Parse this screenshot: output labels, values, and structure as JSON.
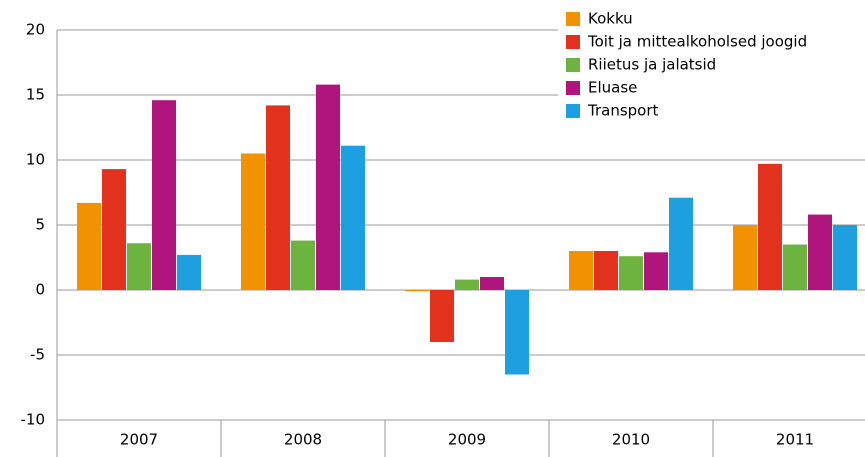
{
  "chart_data": {
    "type": "bar",
    "categories": [
      "2007",
      "2008",
      "2009",
      "2010",
      "2011"
    ],
    "series": [
      {
        "name": "Kokku",
        "color": "#f39200",
        "values": [
          6.7,
          10.5,
          -0.1,
          3.0,
          5.0
        ]
      },
      {
        "name": "Toit ja mittealkoholsed joogid",
        "color": "#e2311d",
        "values": [
          9.3,
          14.2,
          -4.0,
          3.0,
          9.7
        ]
      },
      {
        "name": "Riietus ja jalatsid",
        "color": "#6db33f",
        "values": [
          3.6,
          3.8,
          0.8,
          2.6,
          3.5
        ]
      },
      {
        "name": "Eluase",
        "color": "#b0157e",
        "values": [
          14.6,
          15.8,
          1.0,
          2.9,
          5.8
        ]
      },
      {
        "name": "Transport",
        "color": "#1e9fe0",
        "values": [
          2.7,
          11.1,
          -6.5,
          7.1,
          5.0
        ]
      }
    ],
    "ylim": [
      -10,
      20
    ],
    "yticks": [
      -10,
      -5,
      0,
      5,
      10,
      15,
      20
    ],
    "grid": true,
    "legend": "top-right"
  }
}
